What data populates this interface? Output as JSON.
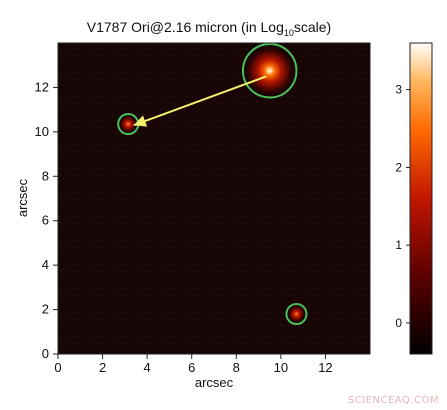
{
  "chart_data": {
    "type": "heatmap",
    "title_main": "V1787 Ori@2.16 micron (in Log",
    "title_sub": "10",
    "title_tail": "scale)",
    "xlabel": "arcsec",
    "ylabel": "arcsec",
    "xlim": [
      0,
      14
    ],
    "ylim": [
      0,
      14
    ],
    "x_ticks": [
      0,
      2,
      4,
      6,
      8,
      10,
      12
    ],
    "y_ticks": [
      0,
      2,
      4,
      6,
      8,
      10,
      12
    ],
    "colorbar": {
      "range": [
        -0.4,
        3.6
      ],
      "ticks": [
        0,
        1,
        2,
        3
      ],
      "colormap": [
        "#000000",
        "#5a0000",
        "#c21600",
        "#ff6a00",
        "#ffb860",
        "#ffffff"
      ]
    },
    "sources": [
      {
        "x": 9.5,
        "y": 12.75,
        "radius": 1.2,
        "strength": 3.5
      },
      {
        "x": 3.15,
        "y": 10.35,
        "radius": 0.45,
        "strength": 1.3
      },
      {
        "x": 10.7,
        "y": 1.8,
        "radius": 0.45,
        "strength": 1.0
      }
    ],
    "arrow": {
      "from": [
        9.35,
        12.5
      ],
      "to": [
        3.4,
        10.3
      ],
      "color": "#f5f06a"
    },
    "circle_color": "#4bbf5a",
    "background_color": "#160505"
  },
  "watermark": "SCIENCEAQ.COM"
}
